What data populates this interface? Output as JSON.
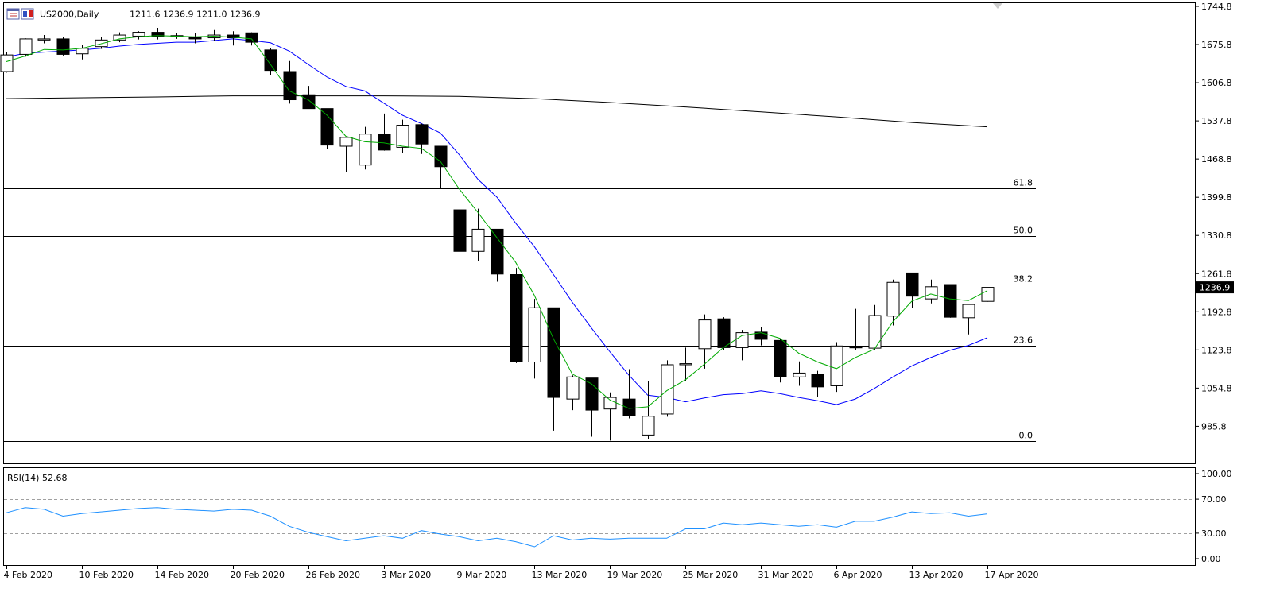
{
  "chart_data": {
    "type": "candlestick",
    "header": {
      "symbol_timeframe": "US2000,Daily",
      "ohlc_text": "1211.6 1236.9 1211.0 1236.9",
      "icons": [
        "bar-chart-icon",
        "candle-chart-icon"
      ]
    },
    "price_axis": {
      "ticks": [
        {
          "label": "1744.8",
          "value": 1744.8
        },
        {
          "label": "1675.8",
          "value": 1675.8
        },
        {
          "label": "1606.8",
          "value": 1606.8
        },
        {
          "label": "1537.8",
          "value": 1537.8
        },
        {
          "label": "1468.8",
          "value": 1468.8
        },
        {
          "label": "1399.8",
          "value": 1399.8
        },
        {
          "label": "1330.8",
          "value": 1330.8
        },
        {
          "label": "1261.8",
          "value": 1261.8
        },
        {
          "label": "1192.8",
          "value": 1192.8
        },
        {
          "label": "1123.8",
          "value": 1123.8
        },
        {
          "label": "1054.8",
          "value": 1054.8
        },
        {
          "label": "985.8",
          "value": 985.8
        }
      ],
      "ylim": [
        920.0,
        1750.6
      ],
      "current_price_label": "1236.9",
      "current_price": 1236.9
    },
    "date_axis": {
      "labels": [
        {
          "text": "4 Feb 2020",
          "index": 0
        },
        {
          "text": "10 Feb 2020",
          "index": 4
        },
        {
          "text": "14 Feb 2020",
          "index": 8
        },
        {
          "text": "20 Feb 2020",
          "index": 12
        },
        {
          "text": "26 Feb 2020",
          "index": 16
        },
        {
          "text": "3 Mar 2020",
          "index": 20
        },
        {
          "text": "9 Mar 2020",
          "index": 24
        },
        {
          "text": "13 Mar 2020",
          "index": 28
        },
        {
          "text": "19 Mar 2020",
          "index": 32
        },
        {
          "text": "25 Mar 2020",
          "index": 36
        },
        {
          "text": "31 Mar 2020",
          "index": 40
        },
        {
          "text": "6 Apr 2020",
          "index": 44
        },
        {
          "text": "13 Apr 2020",
          "index": 48
        },
        {
          "text": "17 Apr 2020",
          "index": 52
        }
      ]
    },
    "candles": [
      {
        "o": 1627,
        "h": 1662,
        "l": 1625,
        "c": 1657
      },
      {
        "o": 1658,
        "h": 1687,
        "l": 1654,
        "c": 1686
      },
      {
        "o": 1684,
        "h": 1693,
        "l": 1678,
        "c": 1686
      },
      {
        "o": 1686,
        "h": 1690,
        "l": 1656,
        "c": 1658
      },
      {
        "o": 1659,
        "h": 1675,
        "l": 1649,
        "c": 1669
      },
      {
        "o": 1672,
        "h": 1689,
        "l": 1668,
        "c": 1684
      },
      {
        "o": 1684,
        "h": 1698,
        "l": 1680,
        "c": 1693
      },
      {
        "o": 1691,
        "h": 1700,
        "l": 1685,
        "c": 1698
      },
      {
        "o": 1698,
        "h": 1706,
        "l": 1685,
        "c": 1690
      },
      {
        "o": 1692,
        "h": 1697,
        "l": 1686,
        "c": 1691
      },
      {
        "o": 1689,
        "h": 1697,
        "l": 1678,
        "c": 1686
      },
      {
        "o": 1688,
        "h": 1702,
        "l": 1683,
        "c": 1693
      },
      {
        "o": 1693,
        "h": 1700,
        "l": 1674,
        "c": 1688
      },
      {
        "o": 1697,
        "h": 1698,
        "l": 1674,
        "c": 1680
      },
      {
        "o": 1666,
        "h": 1670,
        "l": 1620,
        "c": 1629
      },
      {
        "o": 1627,
        "h": 1646,
        "l": 1569,
        "c": 1576
      },
      {
        "o": 1585,
        "h": 1601,
        "l": 1562,
        "c": 1560
      },
      {
        "o": 1560,
        "h": 1560,
        "l": 1487,
        "c": 1494
      },
      {
        "o": 1492,
        "h": 1510,
        "l": 1446,
        "c": 1508
      },
      {
        "o": 1458,
        "h": 1527,
        "l": 1450,
        "c": 1514
      },
      {
        "o": 1514,
        "h": 1551,
        "l": 1484,
        "c": 1485
      },
      {
        "o": 1490,
        "h": 1540,
        "l": 1480,
        "c": 1530
      },
      {
        "o": 1531,
        "h": 1533,
        "l": 1478,
        "c": 1496
      },
      {
        "o": 1492,
        "h": 1492,
        "l": 1416,
        "c": 1455
      },
      {
        "o": 1377,
        "h": 1385,
        "l": 1302,
        "c": 1302
      },
      {
        "o": 1302,
        "h": 1379,
        "l": 1285,
        "c": 1342
      },
      {
        "o": 1342,
        "h": 1342,
        "l": 1247,
        "c": 1261
      },
      {
        "o": 1260,
        "h": 1272,
        "l": 1100,
        "c": 1102
      },
      {
        "o": 1102,
        "h": 1216,
        "l": 1072,
        "c": 1200
      },
      {
        "o": 1200,
        "h": 1200,
        "l": 978,
        "c": 1038
      },
      {
        "o": 1035,
        "h": 1078,
        "l": 1015,
        "c": 1075
      },
      {
        "o": 1073,
        "h": 1073,
        "l": 967,
        "c": 1015
      },
      {
        "o": 1017,
        "h": 1047,
        "l": 960,
        "c": 1038
      },
      {
        "o": 1035,
        "h": 1089,
        "l": 1000,
        "c": 1005
      },
      {
        "o": 970,
        "h": 1068,
        "l": 962,
        "c": 1004
      },
      {
        "o": 1008,
        "h": 1105,
        "l": 1003,
        "c": 1097
      },
      {
        "o": 1097,
        "h": 1128,
        "l": 1068,
        "c": 1099
      },
      {
        "o": 1126,
        "h": 1188,
        "l": 1090,
        "c": 1178
      },
      {
        "o": 1180,
        "h": 1183,
        "l": 1123,
        "c": 1128
      },
      {
        "o": 1128,
        "h": 1160,
        "l": 1105,
        "c": 1155
      },
      {
        "o": 1156,
        "h": 1166,
        "l": 1132,
        "c": 1143
      },
      {
        "o": 1141,
        "h": 1143,
        "l": 1065,
        "c": 1075
      },
      {
        "o": 1075,
        "h": 1103,
        "l": 1059,
        "c": 1082
      },
      {
        "o": 1080,
        "h": 1086,
        "l": 1038,
        "c": 1057
      },
      {
        "o": 1059,
        "h": 1138,
        "l": 1048,
        "c": 1131
      },
      {
        "o": 1129,
        "h": 1198,
        "l": 1123,
        "c": 1129
      },
      {
        "o": 1127,
        "h": 1205,
        "l": 1124,
        "c": 1186
      },
      {
        "o": 1185,
        "h": 1251,
        "l": 1168,
        "c": 1246
      },
      {
        "o": 1263,
        "h": 1263,
        "l": 1200,
        "c": 1221
      },
      {
        "o": 1216,
        "h": 1251,
        "l": 1208,
        "c": 1238
      },
      {
        "o": 1242,
        "h": 1242,
        "l": 1182,
        "c": 1183
      },
      {
        "o": 1182,
        "h": 1202,
        "l": 1152,
        "c": 1206
      },
      {
        "o": 1211.6,
        "h": 1236.9,
        "l": 1211.0,
        "c": 1236.9
      }
    ],
    "fib_levels": [
      {
        "label": "61.8",
        "value": 1416
      },
      {
        "label": "50.0",
        "value": 1330
      },
      {
        "label": "38.2",
        "value": 1242
      },
      {
        "label": "23.6",
        "value": 1131
      },
      {
        "label": "0.0",
        "value": 959
      }
    ],
    "ma_long": [
      {
        "i": 0,
        "v": 1578
      },
      {
        "i": 8,
        "v": 1581
      },
      {
        "i": 12,
        "v": 1583
      },
      {
        "i": 20,
        "v": 1583
      },
      {
        "i": 24,
        "v": 1582
      },
      {
        "i": 28,
        "v": 1578
      },
      {
        "i": 32,
        "v": 1571
      },
      {
        "i": 36,
        "v": 1563
      },
      {
        "i": 40,
        "v": 1554
      },
      {
        "i": 44,
        "v": 1545
      },
      {
        "i": 48,
        "v": 1535
      },
      {
        "i": 52,
        "v": 1527
      }
    ],
    "ma_blue": [
      1653,
      1660,
      1662,
      1664,
      1666,
      1669,
      1673,
      1676,
      1678,
      1680,
      1680,
      1683,
      1686,
      1683,
      1679,
      1664,
      1640,
      1617,
      1600,
      1592,
      1570,
      1548,
      1533,
      1516,
      1477,
      1432,
      1400,
      1353,
      1310,
      1260,
      1210,
      1164,
      1120,
      1078,
      1042,
      1038,
      1030,
      1037,
      1043,
      1045,
      1050,
      1045,
      1038,
      1032,
      1025,
      1035,
      1054,
      1075,
      1095,
      1110,
      1123,
      1132,
      1146
    ],
    "ma_green": [
      1645,
      1655,
      1667,
      1666,
      1669,
      1677,
      1686,
      1690,
      1692,
      1691,
      1690,
      1691,
      1689,
      1686,
      1640,
      1592,
      1576,
      1548,
      1510,
      1500,
      1498,
      1492,
      1488,
      1465,
      1415,
      1372,
      1327,
      1282,
      1222,
      1144,
      1080,
      1063,
      1033,
      1018,
      1021,
      1050,
      1070,
      1098,
      1128,
      1150,
      1155,
      1145,
      1118,
      1102,
      1090,
      1110,
      1125,
      1175,
      1212,
      1225,
      1216,
      1213,
      1231
    ]
  },
  "rsi_panel": {
    "label": "RSI(14) 52.68",
    "ticks": [
      {
        "label": "100.00",
        "value": 100
      },
      {
        "label": "70.00",
        "value": 70
      },
      {
        "label": "30.00",
        "value": 30
      },
      {
        "label": "0.00",
        "value": 0
      }
    ],
    "levels": [
      70,
      30
    ],
    "values": [
      54,
      60,
      58,
      50,
      53,
      55,
      57,
      59,
      60,
      58,
      57,
      56,
      58,
      57,
      50,
      38,
      31,
      26,
      21,
      24,
      27,
      24,
      33,
      29,
      26,
      21,
      24,
      20,
      14,
      27,
      22,
      24,
      23,
      24,
      24,
      24,
      35,
      35,
      42,
      40,
      42,
      40,
      38,
      40,
      37,
      44,
      44,
      49,
      55,
      53,
      54,
      50,
      52.68
    ]
  },
  "colors": {
    "bull_fill": "#ffffff",
    "bear_fill": "#000000",
    "ma_blue": "#0000ff",
    "ma_green": "#00aa00",
    "ma_long": "#000000",
    "rsi_line": "#1e90ff",
    "grid_dash": "#a0a0a0"
  }
}
